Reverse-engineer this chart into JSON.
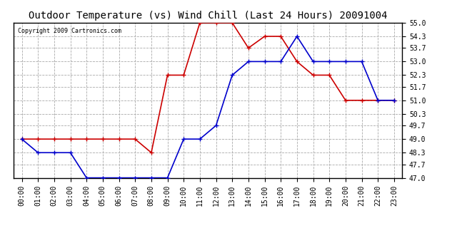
{
  "title": "Outdoor Temperature (vs) Wind Chill (Last 24 Hours) 20091004",
  "copyright": "Copyright 2009 Cartronics.com",
  "hours": [
    "00:00",
    "01:00",
    "02:00",
    "03:00",
    "04:00",
    "05:00",
    "06:00",
    "07:00",
    "08:00",
    "09:00",
    "10:00",
    "11:00",
    "12:00",
    "13:00",
    "14:00",
    "15:00",
    "16:00",
    "17:00",
    "18:00",
    "19:00",
    "20:00",
    "21:00",
    "22:00",
    "23:00"
  ],
  "outdoor_temp": [
    49.0,
    49.0,
    49.0,
    49.0,
    49.0,
    49.0,
    49.0,
    49.0,
    48.3,
    52.3,
    52.3,
    55.0,
    55.0,
    55.0,
    53.7,
    54.3,
    54.3,
    53.0,
    52.3,
    52.3,
    51.0,
    51.0,
    51.0,
    51.0
  ],
  "wind_chill": [
    49.0,
    48.3,
    48.3,
    48.3,
    47.0,
    47.0,
    47.0,
    47.0,
    47.0,
    47.0,
    49.0,
    49.0,
    49.7,
    52.3,
    53.0,
    53.0,
    53.0,
    54.3,
    53.0,
    53.0,
    53.0,
    53.0,
    51.0,
    51.0
  ],
  "temp_color": "#cc0000",
  "chill_color": "#0000cc",
  "ylim": [
    47.0,
    55.0
  ],
  "yticks": [
    47.0,
    47.7,
    48.3,
    49.0,
    49.7,
    50.3,
    51.0,
    51.7,
    52.3,
    53.0,
    53.7,
    54.3,
    55.0
  ],
  "background_color": "#ffffff",
  "grid_color": "#aaaaaa",
  "title_fontsize": 10,
  "tick_fontsize": 7,
  "marker": "+",
  "marker_size": 4,
  "line_width": 1.2
}
